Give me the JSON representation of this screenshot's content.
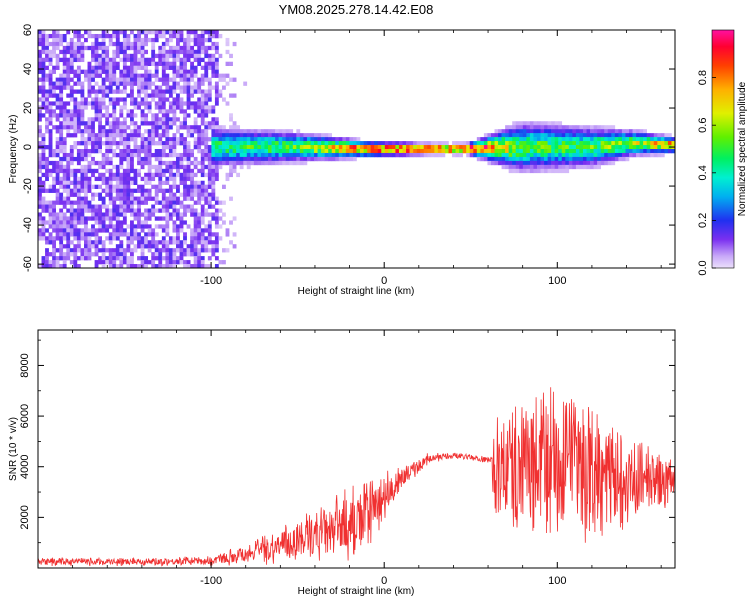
{
  "title": "YM08.2025.278.14.42.E08",
  "chart_data": [
    {
      "type": "heatmap",
      "xlabel": "Height of straight line (km)",
      "ylabel": "Frequency (Hz)",
      "xlim": [
        -200,
        168
      ],
      "ylim": [
        -62,
        60
      ],
      "x_ticks": [
        -100,
        0,
        100
      ],
      "y_ticks": [
        -60,
        -40,
        -20,
        0,
        20,
        40,
        60
      ],
      "colorbar": {
        "label": "Normalized spectral amplitude",
        "range": [
          0,
          1
        ],
        "ticks": [
          0.0,
          0.2,
          0.4,
          0.6,
          0.8
        ],
        "tick_labels": [
          "0.0",
          "0.2",
          "0.4",
          "0.6",
          "0.8"
        ]
      },
      "noise_region": {
        "x_from": -200,
        "x_to": -95,
        "freq_from": -62,
        "freq_to": 60,
        "amplitude": 0.1
      },
      "ridge": [
        {
          "x": -100,
          "freq": 0,
          "amplitude": 0.45,
          "halfwidth_hz": 8
        },
        {
          "x": -50,
          "freq": 0,
          "amplitude": 0.5,
          "halfwidth_hz": 6
        },
        {
          "x": -10,
          "freq": -1,
          "amplitude": 0.9,
          "halfwidth_hz": 3
        },
        {
          "x": 30,
          "freq": -1,
          "amplitude": 1.0,
          "halfwidth_hz": 2
        },
        {
          "x": 48,
          "freq": -1,
          "amplitude": 1.0,
          "halfwidth_hz": 2
        },
        {
          "x": 80,
          "freq": 0,
          "amplitude": 0.5,
          "halfwidth_hz": 10
        },
        {
          "x": 120,
          "freq": 0,
          "amplitude": 0.5,
          "halfwidth_hz": 8
        },
        {
          "x": 145,
          "freq": 2,
          "amplitude": 0.6,
          "halfwidth_hz": 5
        },
        {
          "x": 168,
          "freq": 1,
          "amplitude": 0.8,
          "halfwidth_hz": 3
        }
      ]
    },
    {
      "type": "line",
      "xlabel": "Height of straight line (km)",
      "ylabel": "SNR (10 * v/v)",
      "xlim": [
        -200,
        168
      ],
      "ylim": [
        0,
        9400
      ],
      "x_ticks": [
        -100,
        0,
        100
      ],
      "y_ticks": [
        2000,
        4000,
        6000,
        8000
      ],
      "color": "#f03030",
      "envelope": [
        {
          "x": -200,
          "mean": 250,
          "spread": 180
        },
        {
          "x": -150,
          "mean": 250,
          "spread": 180
        },
        {
          "x": -100,
          "mean": 280,
          "spread": 200
        },
        {
          "x": -85,
          "mean": 500,
          "spread": 400
        },
        {
          "x": -60,
          "mean": 900,
          "spread": 800
        },
        {
          "x": -30,
          "mean": 1500,
          "spread": 1300
        },
        {
          "x": -10,
          "mean": 2000,
          "spread": 1800
        },
        {
          "x": 0,
          "mean": 2800,
          "spread": 1100
        },
        {
          "x": 10,
          "mean": 3500,
          "spread": 500
        },
        {
          "x": 25,
          "mean": 4300,
          "spread": 250
        },
        {
          "x": 40,
          "mean": 4450,
          "spread": 150
        },
        {
          "x": 62,
          "mean": 4250,
          "spread": 150
        },
        {
          "x": 63,
          "mean": 4000,
          "spread": 2500
        },
        {
          "x": 90,
          "mean": 4000,
          "spread": 3800
        },
        {
          "x": 120,
          "mean": 3800,
          "spread": 3200
        },
        {
          "x": 150,
          "mean": 3500,
          "spread": 1800
        },
        {
          "x": 168,
          "mean": 3300,
          "spread": 1000
        }
      ]
    }
  ]
}
